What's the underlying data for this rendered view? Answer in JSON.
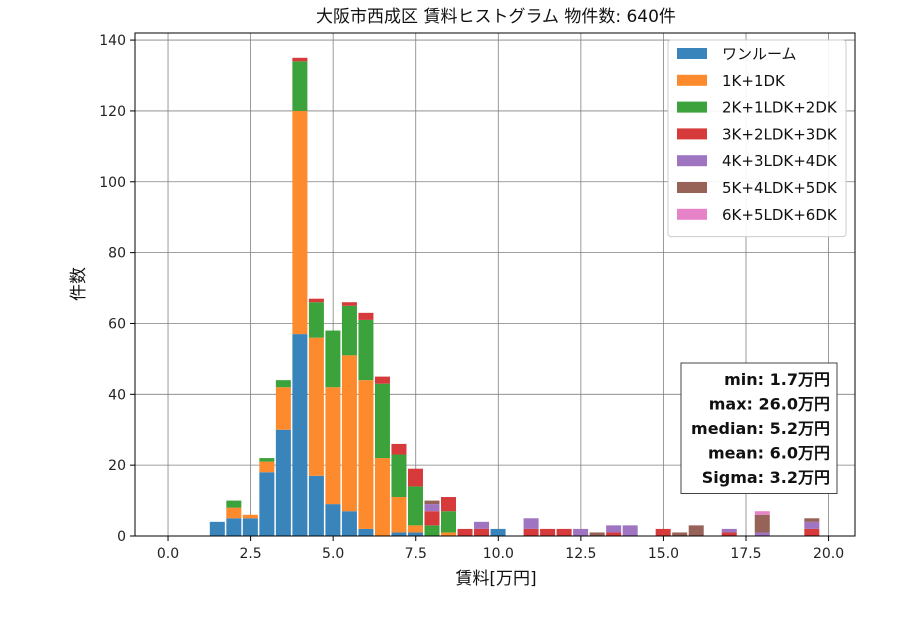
{
  "chart_data": {
    "type": "bar",
    "stacked": true,
    "title": "大阪市西成区 賃料ヒストグラム  物件数: 640件",
    "xlabel": "賃料[万円]",
    "ylabel": "件数",
    "xlim": [
      -1.0,
      20.8
    ],
    "ylim": [
      0,
      142
    ],
    "xticks": [
      0,
      2.5,
      5,
      7.5,
      10,
      12.5,
      15,
      17.5,
      20
    ],
    "xtick_labels": [
      "0.0",
      "2.5",
      "5.0",
      "7.5",
      "10.0",
      "12.5",
      "15.0",
      "17.5",
      "20.0"
    ],
    "yticks": [
      0,
      20,
      40,
      60,
      80,
      100,
      120,
      140
    ],
    "ytick_labels": [
      "0",
      "20",
      "40",
      "60",
      "80",
      "100",
      "120",
      "140"
    ],
    "grid": true,
    "legend_position": "top-right",
    "bin_width": 0.5,
    "bin_starts": [
      1.25,
      1.75,
      2.25,
      2.75,
      3.25,
      3.75,
      4.25,
      4.75,
      5.25,
      5.75,
      6.25,
      6.75,
      7.25,
      7.75,
      8.25,
      8.75,
      9.25,
      9.75,
      10.75,
      11.25,
      11.75,
      12.25,
      12.75,
      13.25,
      13.75,
      14.75,
      15.25,
      15.75,
      16.75,
      17.75,
      19.25
    ],
    "series": [
      {
        "name": "ワンルーム",
        "color": "#3a84bc",
        "values": [
          4,
          5,
          5,
          18,
          30,
          57,
          17,
          9,
          7,
          2,
          0,
          1,
          1,
          0,
          0,
          0,
          0,
          2,
          0,
          0,
          0,
          0,
          0,
          0,
          0,
          0,
          0,
          0,
          0,
          0,
          0
        ]
      },
      {
        "name": "1K+1DK",
        "color": "#fd8b2d",
        "values": [
          0,
          3,
          1,
          3,
          12,
          63,
          39,
          33,
          44,
          42,
          22,
          10,
          2,
          0,
          1,
          0,
          0,
          0,
          0,
          0,
          0,
          0,
          0,
          0,
          0,
          0,
          0,
          0,
          0,
          0,
          0
        ]
      },
      {
        "name": "2K+1LDK+2DK",
        "color": "#3ca33c",
        "values": [
          0,
          2,
          0,
          1,
          2,
          14,
          10,
          16,
          14,
          17,
          21,
          12,
          11,
          3,
          6,
          0,
          0,
          0,
          0,
          0,
          0,
          0,
          0,
          0,
          0,
          0,
          0,
          0,
          0,
          0,
          0
        ]
      },
      {
        "name": "3K+2LDK+3DK",
        "color": "#d63a3b",
        "values": [
          0,
          0,
          0,
          0,
          0,
          1,
          1,
          0,
          1,
          2,
          2,
          3,
          5,
          4,
          4,
          2,
          2,
          0,
          2,
          2,
          2,
          0,
          0,
          1,
          0,
          2,
          0,
          0,
          1,
          0,
          2
        ]
      },
      {
        "name": "4K+3LDK+4DK",
        "color": "#9f74c0",
        "values": [
          0,
          0,
          0,
          0,
          0,
          0,
          0,
          0,
          0,
          0,
          0,
          0,
          0,
          2,
          0,
          0,
          2,
          0,
          3,
          0,
          0,
          2,
          0,
          2,
          3,
          0,
          0,
          0,
          1,
          1,
          2
        ]
      },
      {
        "name": "5K+4LDK+5DK",
        "color": "#976257",
        "values": [
          0,
          0,
          0,
          0,
          0,
          0,
          0,
          0,
          0,
          0,
          0,
          0,
          0,
          1,
          0,
          0,
          0,
          0,
          0,
          0,
          0,
          0,
          1,
          0,
          0,
          0,
          1,
          3,
          0,
          5,
          1
        ]
      },
      {
        "name": "6K+5LDK+6DK",
        "color": "#e683c8",
        "values": [
          0,
          0,
          0,
          0,
          0,
          0,
          0,
          0,
          0,
          0,
          0,
          0,
          0,
          0,
          0,
          0,
          0,
          0,
          0,
          0,
          0,
          0,
          0,
          0,
          0,
          0,
          0,
          0,
          0,
          1,
          0
        ]
      }
    ],
    "stats_box": [
      "min: 1.7万円",
      "max: 26.0万円",
      "median: 5.2万円",
      "mean: 6.0万円",
      "Sigma: 3.2万円"
    ],
    "stats_position": "bottom-right"
  }
}
